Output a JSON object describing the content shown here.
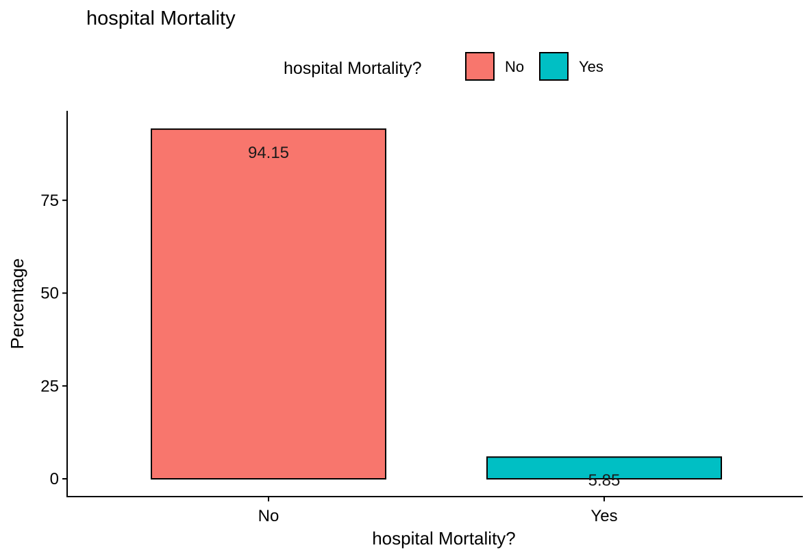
{
  "chart_data": {
    "type": "bar",
    "title": "hospital Mortality",
    "xlabel": "hospital Mortality?",
    "ylabel": "Percentage",
    "categories": [
      "No",
      "Yes"
    ],
    "values": [
      94.15,
      5.85
    ],
    "data_labels": [
      "94.15",
      "5.85"
    ],
    "colors": [
      "#F8766D",
      "#00BFC4"
    ],
    "ylim": [
      0,
      100
    ],
    "yticks": [
      0,
      25,
      50,
      75
    ],
    "ytick_labels": [
      "0",
      "25",
      "50",
      "75"
    ],
    "grid": false,
    "legend": {
      "title": "hospital Mortality?",
      "placement": "top",
      "entries": [
        {
          "label": "No",
          "color": "#F8766D"
        },
        {
          "label": "Yes",
          "color": "#00BFC4"
        }
      ]
    }
  }
}
